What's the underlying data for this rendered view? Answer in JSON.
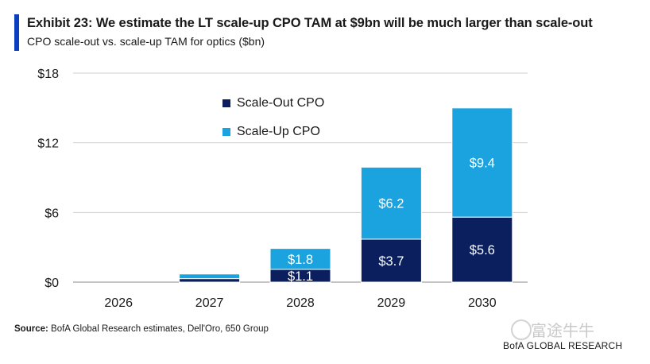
{
  "header": {
    "title": "Exhibit 23: We estimate the LT scale-up CPO TAM at $9bn will be much larger than scale-out",
    "subtitle": "CPO scale-out vs. scale-up TAM for optics ($bn)"
  },
  "footer": {
    "source_label": "Source:",
    "source_text": " BofA Global Research estimates, Dell'Oro, 650 Group",
    "brand": "BofA GLOBAL RESEARCH",
    "watermark": "富途牛牛"
  },
  "colors": {
    "accent": "#0b3fbf",
    "scale_out": "#0b1f5e",
    "scale_up": "#1aa3de",
    "grid": "#cfcfcf"
  },
  "chart_data": {
    "type": "bar",
    "stacked": true,
    "title": "",
    "xlabel": "",
    "ylabel": "",
    "categories": [
      "2026",
      "2027",
      "2028",
      "2029",
      "2030"
    ],
    "series": [
      {
        "name": "Scale-Out CPO",
        "values": [
          0.0,
          0.3,
          1.1,
          3.7,
          5.6
        ],
        "labels": [
          "",
          "",
          "$1.1",
          "$3.7",
          "$5.6"
        ]
      },
      {
        "name": "Scale-Up CPO",
        "values": [
          0.0,
          0.4,
          1.8,
          6.2,
          9.4
        ],
        "labels": [
          "",
          "",
          "$1.8",
          "$6.2",
          "$9.4"
        ]
      }
    ],
    "ylim": [
      0,
      18
    ],
    "yticks": [
      0,
      6,
      12,
      18
    ],
    "ytick_labels": [
      "$0",
      "$6",
      "$12",
      "$18"
    ],
    "grid": true,
    "legend_position": "top-left inside plot"
  }
}
